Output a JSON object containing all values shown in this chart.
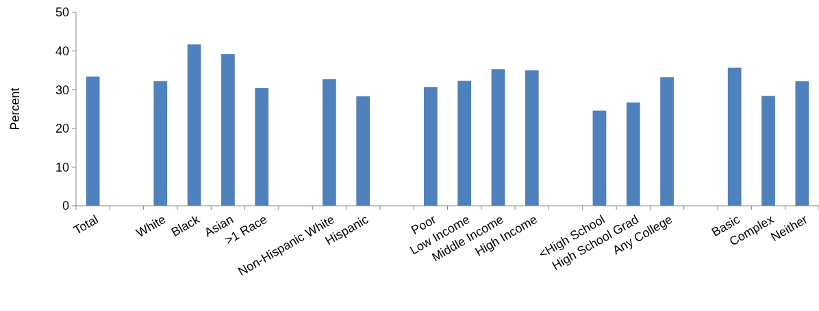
{
  "chart_data": {
    "type": "bar",
    "ylabel": "Percent",
    "categories": [
      "Total",
      null,
      "White",
      "Black",
      "Asian",
      ">1 Race",
      null,
      "Non-Hispanic White",
      "Hispanic",
      null,
      "Poor",
      "Low Income",
      "Middle Income",
      "High Income",
      null,
      "<High School",
      "High School Grad",
      "Any College",
      null,
      "Basic",
      "Complex",
      "Neither"
    ],
    "values": [
      33.4,
      null,
      32.2,
      41.7,
      39.2,
      30.4,
      null,
      32.7,
      28.3,
      null,
      30.7,
      32.3,
      35.3,
      35.0,
      null,
      24.6,
      26.7,
      33.2,
      null,
      35.7,
      28.4,
      32.2
    ],
    "color": "#4f81bd",
    "ylim": [
      0,
      50
    ],
    "yticks": [
      0,
      10,
      20,
      30,
      40,
      50
    ]
  }
}
